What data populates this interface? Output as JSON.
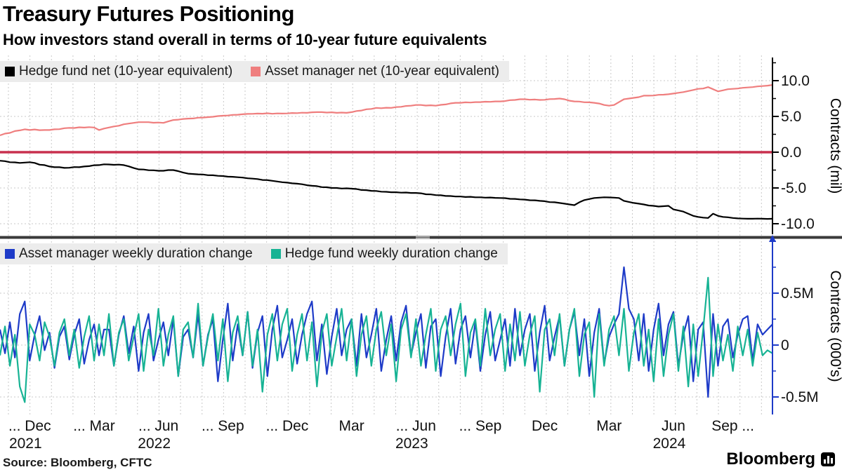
{
  "header": {
    "title": "Treasury Futures Positioning",
    "subtitle": "How investors stand overall in terms of 10-year future equivalents"
  },
  "source": "Source: Bloomberg, CFTC",
  "branding": {
    "logo_text": "Bloomberg",
    "logo_icon": "bloomberg-terminal-icon"
  },
  "colors": {
    "salmon": "#ef7e7e",
    "black_series": "#000000",
    "blue": "#1e3bc8",
    "teal": "#17b394",
    "zero_line_red": "#c8304e",
    "grid": "#c9c9c9",
    "legend_bg": "#ececec",
    "divider": "#3a3a3a",
    "text": "#111111"
  },
  "x_axis": {
    "tick_labels": [
      "... Dec",
      "... Mar",
      "... Jun",
      "... Sep",
      "... Dec",
      "Mar",
      "... Jun",
      "... Sep",
      "Dec",
      "Mar",
      "Jun",
      "Sep ..."
    ],
    "tick_weeks": [
      6,
      19,
      32,
      45,
      58,
      71,
      84,
      97,
      110,
      123,
      136,
      148
    ],
    "year_labels": [
      {
        "text": "2021",
        "tick": 0
      },
      {
        "text": "2022",
        "tick": 2
      },
      {
        "text": "2023",
        "tick": 6
      },
      {
        "text": "2024",
        "tick": 10
      }
    ]
  },
  "chart_data": [
    {
      "type": "line",
      "panel": "net-positioning",
      "ylabel": "Contracts  (mil)",
      "y_ticks": [
        {
          "label": "10.0",
          "value": 10
        },
        {
          "label": "5.0",
          "value": 5
        },
        {
          "label": "0.0",
          "value": 0
        },
        {
          "label": "-5.0",
          "value": -5
        },
        {
          "label": "-10.0",
          "value": -10
        }
      ],
      "y_minor_ticks": [
        12.5,
        7.5,
        2.5,
        -2.5,
        -7.5
      ],
      "ylim": [
        -11.3,
        12.9
      ],
      "grid_values": [
        10,
        5,
        -5,
        -10
      ],
      "zero_line_value": 0,
      "legend_position": "top-left",
      "series": [
        {
          "name": "Hedge fund net (10-year equivalent)",
          "color_key": "black_series",
          "values": [
            -1.2,
            -1.25,
            -1.4,
            -1.42,
            -1.5,
            -1.45,
            -1.4,
            -1.5,
            -1.75,
            -1.8,
            -2.0,
            -2.1,
            -2.1,
            -2.2,
            -2.18,
            -2.08,
            -2.1,
            -2.0,
            -1.95,
            -1.82,
            -1.8,
            -1.7,
            -1.72,
            -1.76,
            -1.74,
            -1.8,
            -1.98,
            -2.22,
            -2.4,
            -2.42,
            -2.52,
            -2.53,
            -2.6,
            -2.6,
            -2.5,
            -2.5,
            -2.65,
            -2.85,
            -3.0,
            -3.05,
            -3.1,
            -3.12,
            -3.22,
            -3.23,
            -3.3,
            -3.33,
            -3.42,
            -3.44,
            -3.5,
            -3.55,
            -3.65,
            -3.7,
            -3.75,
            -3.88,
            -3.9,
            -4.0,
            -4.1,
            -4.2,
            -4.25,
            -4.35,
            -4.4,
            -4.48,
            -4.62,
            -4.7,
            -4.75,
            -4.88,
            -4.9,
            -5.0,
            -5.0,
            -5.08,
            -5.05,
            -5.1,
            -5.15,
            -5.28,
            -5.3,
            -5.4,
            -5.42,
            -5.52,
            -5.54,
            -5.6,
            -5.6,
            -5.66,
            -5.64,
            -5.7,
            -5.7,
            -5.75,
            -5.88,
            -5.9,
            -6.0,
            -6.02,
            -6.12,
            -6.13,
            -6.2,
            -6.2,
            -6.26,
            -6.24,
            -6.3,
            -6.3,
            -6.35,
            -6.33,
            -6.38,
            -6.4,
            -6.42,
            -6.52,
            -6.53,
            -6.6,
            -6.63,
            -6.72,
            -6.73,
            -6.8,
            -6.85,
            -6.98,
            -7.0,
            -7.1,
            -7.2,
            -7.3,
            -7.4,
            -7.0,
            -6.7,
            -6.55,
            -6.4,
            -6.35,
            -6.3,
            -6.32,
            -6.35,
            -6.4,
            -6.8,
            -6.95,
            -7.1,
            -7.2,
            -7.3,
            -7.45,
            -7.5,
            -7.6,
            -7.55,
            -7.5,
            -8.0,
            -8.15,
            -8.3,
            -8.6,
            -8.9,
            -9.05,
            -9.15,
            -9.2,
            -8.6,
            -8.9,
            -9.05,
            -9.1,
            -9.2,
            -9.25,
            -9.28,
            -9.3,
            -9.3,
            -9.28,
            -9.3,
            -9.32,
            -9.3
          ]
        },
        {
          "name": "Asset manager net (10-year equivalent)",
          "color_key": "salmon",
          "values": [
            2.35,
            2.6,
            2.7,
            2.95,
            3.05,
            3.2,
            3.1,
            3.18,
            3.08,
            3.1,
            3.1,
            3.2,
            3.22,
            3.35,
            3.4,
            3.38,
            3.48,
            3.44,
            3.5,
            3.45,
            3.1,
            3.3,
            3.45,
            3.6,
            3.7,
            3.9,
            4.0,
            4.1,
            4.2,
            4.2,
            4.2,
            4.12,
            4.15,
            4.1,
            4.3,
            4.5,
            4.55,
            4.65,
            4.7,
            4.72,
            4.82,
            4.84,
            4.9,
            4.95,
            5.05,
            5.1,
            5.13,
            5.22,
            5.24,
            5.3,
            5.35,
            5.36,
            5.4,
            5.38,
            5.44,
            5.37,
            5.42,
            5.4,
            5.42,
            5.48,
            5.46,
            5.52,
            5.5,
            5.58,
            5.6,
            5.6,
            5.54,
            5.58,
            5.5,
            5.54,
            5.5,
            5.6,
            5.75,
            5.82,
            6.0,
            6.05,
            6.2,
            6.15,
            6.22,
            6.2,
            6.3,
            6.34,
            6.46,
            6.5,
            6.6,
            6.6,
            6.52,
            6.56,
            6.5,
            6.62,
            6.68,
            6.82,
            6.9,
            6.9,
            6.97,
            6.94,
            7.0,
            7.0,
            7.06,
            7.04,
            7.1,
            7.1,
            7.15,
            7.27,
            7.3,
            7.4,
            7.4,
            7.33,
            7.36,
            7.3,
            7.32,
            7.42,
            7.44,
            7.5,
            7.4,
            7.2,
            7.1,
            7.08,
            6.98,
            6.97,
            6.9,
            6.8,
            6.6,
            6.5,
            6.6,
            7.0,
            7.4,
            7.5,
            7.6,
            7.7,
            7.9,
            7.9,
            7.92,
            8.02,
            8.04,
            8.1,
            8.2,
            8.3,
            8.4,
            8.55,
            8.7,
            8.85,
            8.9,
            9.1,
            8.8,
            8.5,
            8.65,
            8.8,
            8.85,
            8.9,
            9.0,
            9.05,
            9.1,
            9.2,
            9.25,
            9.3,
            9.4
          ]
        }
      ]
    },
    {
      "type": "line",
      "panel": "weekly-duration-change",
      "ylabel": "Contracts  (000's)",
      "y_ticks": [
        {
          "label": "0.5M",
          "value": 0.5
        },
        {
          "label": "0",
          "value": 0
        },
        {
          "label": "-0.5M",
          "value": -0.5
        }
      ],
      "y_minor_ticks": [
        1.0,
        0.75,
        0.25,
        -0.25
      ],
      "ylim": [
        -0.66,
        1.02
      ],
      "grid_values": [
        0.5,
        0,
        -0.5
      ],
      "legend_position": "top-left",
      "series": [
        {
          "name": "Asset manager weekly duration change",
          "color_key": "blue",
          "values": [
            0.15,
            -0.08,
            0.22,
            -0.12,
            0.3,
            0.42,
            -0.15,
            0.1,
            0.28,
            -0.05,
            0.12,
            -0.22,
            0.08,
            0.18,
            -0.14,
            0.1,
            0.25,
            -0.18,
            0.05,
            0.2,
            -0.1,
            0.15,
            0.15,
            -0.2,
            0.1,
            0.28,
            -0.08,
            0.18,
            -0.25,
            0.12,
            0.3,
            -0.15,
            0.05,
            0.22,
            -0.1,
            0.25,
            -0.3,
            0.08,
            0.15,
            -0.12,
            0.3,
            -0.2,
            0.1,
            0.25,
            -0.35,
            0.05,
            0.4,
            -0.15,
            0.2,
            -0.1,
            0.32,
            -0.22,
            0.12,
            0.28,
            -0.3,
            0.15,
            0.38,
            -0.12,
            0.05,
            0.25,
            -0.18,
            0.1,
            0.3,
            0.42,
            -0.15,
            0.2,
            -0.28,
            0.08,
            0.35,
            -0.1,
            0.15,
            0.25,
            -0.2,
            0.3,
            -0.12,
            0.1,
            0.35,
            -0.25,
            0.05,
            0.28,
            -0.15,
            0.22,
            0.38,
            -0.1,
            0.12,
            0.3,
            -0.22,
            0.18,
            0.25,
            -0.3,
            0.08,
            0.35,
            -0.18,
            0.15,
            0.28,
            -0.12,
            0.22,
            -0.25,
            0.1,
            0.32,
            -0.15,
            0.05,
            0.25,
            -0.2,
            0.35,
            -0.1,
            0.15,
            0.3,
            -0.25,
            0.12,
            0.38,
            -0.15,
            0.08,
            0.28,
            -0.2,
            0.15,
            0.32,
            -0.1,
            0.25,
            -0.3,
            0.12,
            0.35,
            -0.18,
            0.08,
            0.2,
            0.3,
            0.75,
            0.35,
            0.25,
            -0.15,
            0.3,
            -0.25,
            0.15,
            0.4,
            -0.1,
            0.2,
            0.32,
            -0.2,
            0.1,
            0.28,
            -0.35,
            0.15,
            0.22,
            -0.5,
            0.3,
            -0.2,
            0.18,
            0.25,
            -0.12,
            0.1,
            0.25,
            0.28,
            -0.15,
            0.2,
            0.1,
            0.15,
            0.2
          ]
        },
        {
          "name": "Hedge fund weekly duration change",
          "color_key": "teal",
          "values": [
            -0.1,
            0.18,
            -0.2,
            0.1,
            -0.4,
            -0.55,
            0.2,
            0.1,
            -0.15,
            0.22,
            0.08,
            -0.2,
            0.12,
            0.25,
            -0.1,
            0.15,
            -0.22,
            0.08,
            0.28,
            -0.15,
            0.2,
            -0.1,
            0.3,
            -0.2,
            0.12,
            0.25,
            -0.15,
            0.08,
            0.3,
            -0.25,
            0.15,
            -0.1,
            0.35,
            -0.2,
            0.1,
            0.28,
            -0.3,
            0.15,
            0.22,
            -0.12,
            0.4,
            -0.2,
            0.08,
            0.3,
            -0.15,
            0.25,
            -0.35,
            0.12,
            0.28,
            -0.1,
            0.32,
            -0.2,
            0.15,
            -0.45,
            0.1,
            0.3,
            -0.15,
            0.2,
            0.35,
            -0.25,
            0.1,
            0.3,
            -0.15,
            0.22,
            -0.4,
            0.12,
            0.3,
            -0.2,
            0.08,
            0.35,
            -0.15,
            0.25,
            -0.3,
            0.1,
            0.28,
            -0.2,
            0.15,
            0.32,
            -0.1,
            0.2,
            -0.35,
            0.15,
            0.3,
            -0.12,
            0.25,
            -0.2,
            0.1,
            0.35,
            -0.25,
            0.15,
            0.28,
            -0.1,
            0.2,
            0.4,
            -0.3,
            0.12,
            0.25,
            -0.2,
            0.35,
            -0.1,
            0.15,
            0.3,
            -0.25,
            0.2,
            -0.15,
            0.32,
            -0.2,
            0.1,
            0.28,
            -0.45,
            0.15,
            0.25,
            -0.1,
            0.3,
            -0.2,
            0.15,
            0.35,
            -0.3,
            0.1,
            0.22,
            -0.5,
            0.3,
            -0.2,
            0.15,
            0.28,
            -0.1,
            0.35,
            -0.25,
            0.12,
            0.3,
            -0.2,
            0.15,
            -0.35,
            0.25,
            -0.3,
            0.1,
            0.3,
            -0.25,
            0.18,
            -0.4,
            0.2,
            -0.3,
            0.15,
            0.65,
            -0.3,
            0.2,
            -0.15,
            0.1,
            -0.25,
            0.18,
            -0.1,
            0.15,
            -0.2,
            0.12,
            -0.1,
            -0.05,
            -0.08
          ]
        }
      ]
    }
  ]
}
